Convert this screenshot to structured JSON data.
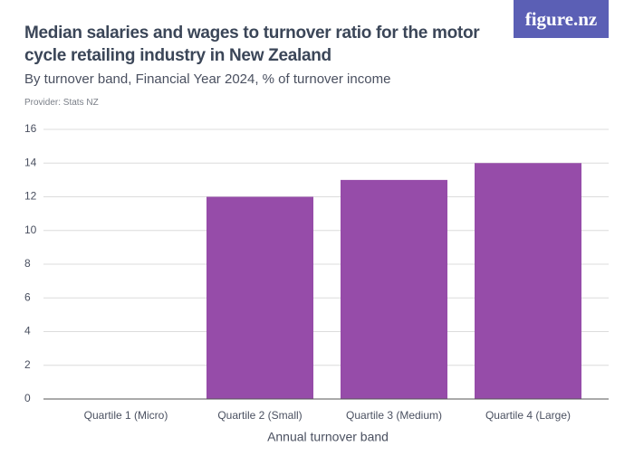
{
  "logo": "figure.nz",
  "chart_data": {
    "type": "bar",
    "title": "Median salaries and wages to turnover ratio for the motor cycle retailing industry in New Zealand",
    "subtitle": "By turnover band, Financial Year 2024, % of turnover income",
    "provider": "Provider: Stats NZ",
    "x_label": "Annual turnover band",
    "categories": [
      "Quartile 1 (Micro)",
      "Quartile 2 (Small)",
      "Quartile 3 (Medium)",
      "Quartile 4 (Large)"
    ],
    "values": [
      null,
      12,
      13,
      14
    ],
    "color": "#964ca9",
    "ylim": [
      0,
      16
    ],
    "yticks": [
      0,
      2,
      4,
      6,
      8,
      10,
      12,
      14,
      16
    ],
    "grid": true
  }
}
